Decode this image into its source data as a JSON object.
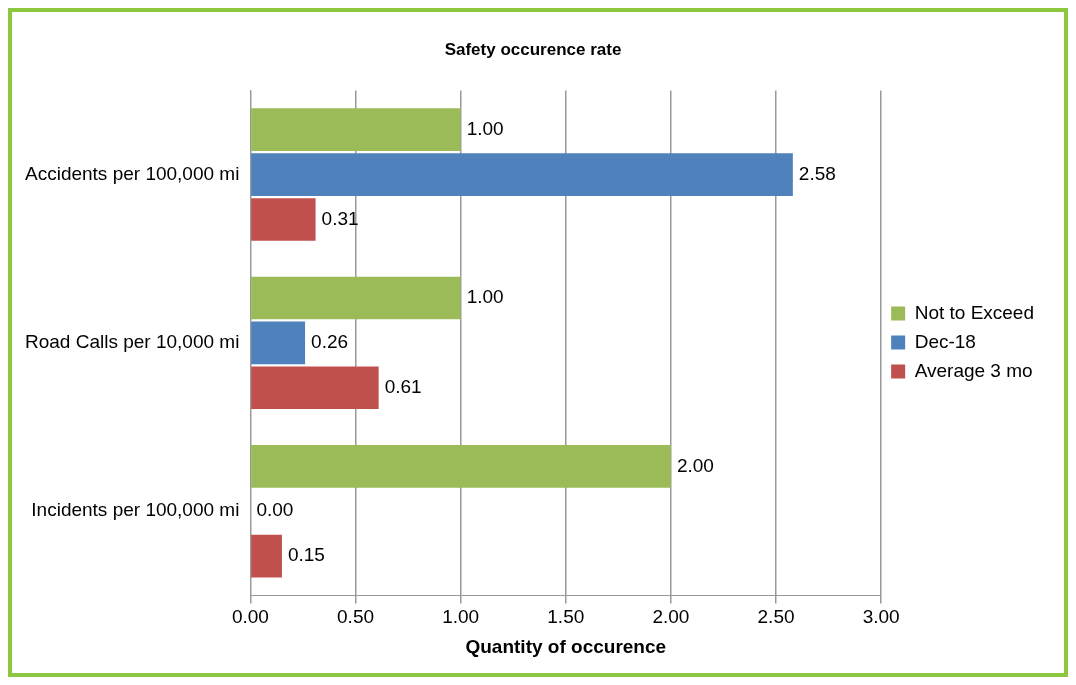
{
  "chart_data": {
    "type": "bar",
    "orientation": "horizontal",
    "title": "Safety occurence rate",
    "xlabel": "Quantity of occurence",
    "categories": [
      "Accidents per 100,000 mi",
      "Road Calls per 10,000 mi",
      "Incidents per 100,000 mi"
    ],
    "series": [
      {
        "name": "Not to Exceed",
        "color": "#9bbb59",
        "values": [
          1,
          1,
          2
        ],
        "value_labels": [
          "1.00",
          "1.00",
          "2.00"
        ]
      },
      {
        "name": "Dec-18",
        "color": "#4f81bd",
        "values": [
          2.58,
          0.26,
          0
        ],
        "value_labels": [
          "2.58",
          "0.26",
          "0.00"
        ]
      },
      {
        "name": "Average 3 mo",
        "color": "#c0504d",
        "values": [
          0.31,
          0.61,
          0.15
        ],
        "value_labels": [
          "0.31",
          "0.61",
          "0.15"
        ]
      }
    ],
    "xlim": [
      0,
      3
    ],
    "xticks": [
      {
        "value": 0,
        "label": "0.00"
      },
      {
        "value": 0.5,
        "label": "0.50"
      },
      {
        "value": 1,
        "label": "1.00"
      },
      {
        "value": 1.5,
        "label": "1.50"
      },
      {
        "value": 2,
        "label": "2.00"
      },
      {
        "value": 2.5,
        "label": "2.50"
      },
      {
        "value": 3,
        "label": "3.00"
      }
    ],
    "grid": "x",
    "legend": "right"
  }
}
